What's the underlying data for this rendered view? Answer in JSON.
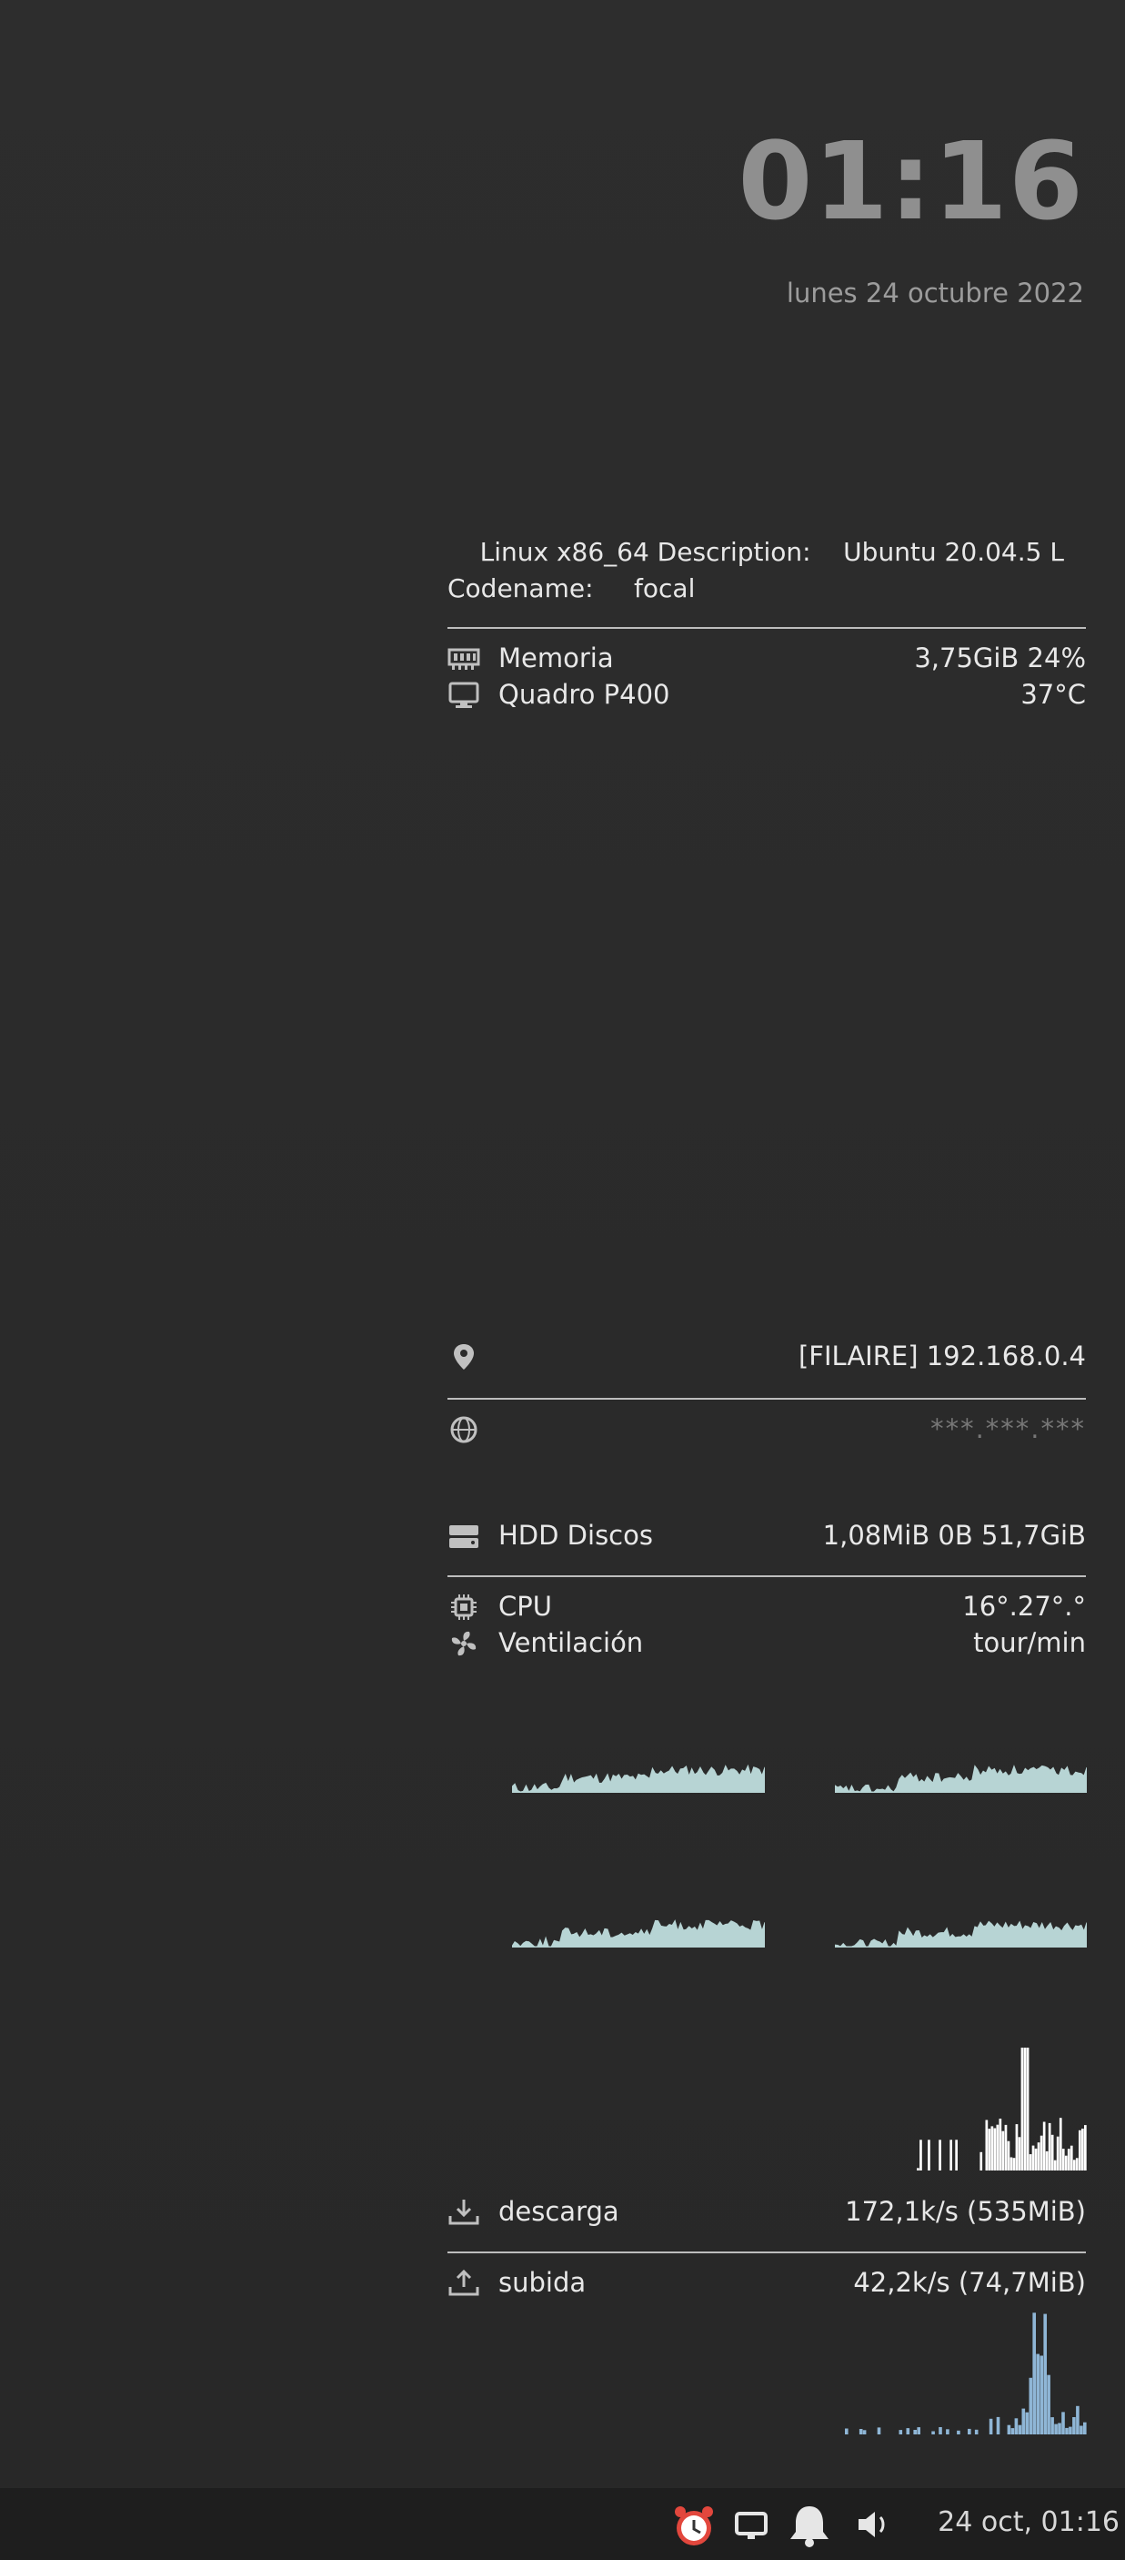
{
  "clock": {
    "time": "01:16",
    "date": "lunes 24 octubre 2022"
  },
  "system": {
    "line1": "    Linux x86_64 Description:    Ubuntu 20.04.5 L",
    "line2": "Codename:     focal"
  },
  "hardware": [
    {
      "icon": "ram-icon",
      "label": "Memoria",
      "value": "3,75GiB 24%"
    },
    {
      "icon": "monitor-icon",
      "label": "Quadro P400",
      "value": "37°C"
    }
  ],
  "network": {
    "local": {
      "icon": "location-pin-icon",
      "value": "[FILAIRE] 192.168.0.4"
    },
    "public": {
      "icon": "globe-icon",
      "value": "***.***.***"
    }
  },
  "disks": {
    "icon": "hdd-icon",
    "label": "HDD Discos",
    "value": "1,08MiB 0B 51,7GiB"
  },
  "cpu": [
    {
      "icon": "cpu-chip-icon",
      "label": "CPU",
      "value": "16°.27°.°"
    },
    {
      "icon": "fan-icon",
      "label": "Ventilación",
      "value": "tour/min"
    }
  ],
  "traffic": {
    "download": {
      "icon": "download-icon",
      "label": "descarga",
      "value": "172,1k/s (535MiB)"
    },
    "upload": {
      "icon": "upload-icon",
      "label": "subida",
      "value": "42,2k/s (74,7MiB)"
    }
  },
  "cpu_graph_color": "#b7d4d4",
  "download_graph_color": "#ffffff",
  "upload_graph_color": "#8fb6d6",
  "taskbar": {
    "icons": [
      "alarm-clock-icon",
      "display-icon",
      "notification-bell-icon",
      "volume-icon"
    ],
    "datetime": "24 oct, 01:16"
  }
}
